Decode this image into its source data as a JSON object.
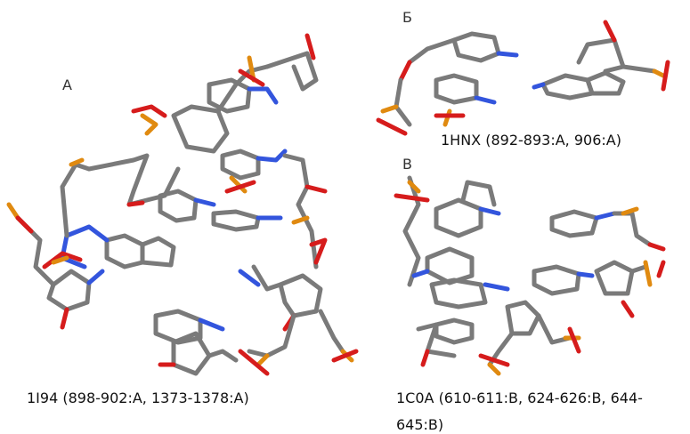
{
  "panels": [
    {
      "label": "А",
      "caption": "1I94 (898-902:A, 1373-1378:A)"
    },
    {
      "label": "Б",
      "caption": "1HNX (892-893:A, 906:A)"
    },
    {
      "label": "В",
      "caption": "1C0A (610-611:B, 624-626:B, 644-645:B)"
    }
  ]
}
